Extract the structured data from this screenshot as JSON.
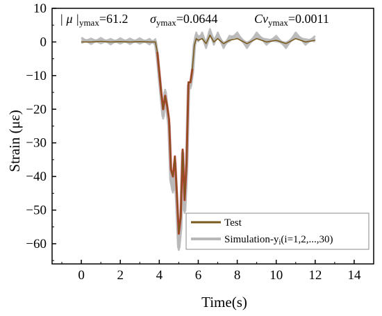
{
  "chart_data": {
    "type": "line",
    "xlabel": "Time(s)",
    "ylabel": "Strain (με)",
    "xlim": [
      -1.5,
      15.0
    ],
    "ylim": [
      -66,
      10
    ],
    "x_ticks": [
      0,
      2,
      4,
      6,
      8,
      10,
      12,
      14
    ],
    "y_ticks": [
      10,
      0,
      -10,
      -20,
      -30,
      -40,
      -50,
      -60
    ],
    "x_tick_labels": [
      "0",
      "2",
      "4",
      "6",
      "8",
      "10",
      "12",
      "14"
    ],
    "y_tick_labels": [
      "10",
      "0",
      "−10",
      "−20",
      "−30",
      "−40",
      "−50",
      "−60"
    ],
    "annotation": {
      "mu_label": "| μ |",
      "mu_sub": "ymax",
      "mu_value": "=61.2",
      "sigma_label": "σ",
      "sigma_sub": "ymax",
      "sigma_value": "=0.0644",
      "cv_label": "Cv",
      "cv_sub": "ymax",
      "cv_value": "=0.0011"
    },
    "legend_placement": "bottom-right",
    "grid": false,
    "series": [
      {
        "name": "Simulation-y",
        "name_sub": "i",
        "name_suffix": "(i=1,2,...,30)",
        "color": "#b8b8b8",
        "x": [
          0,
          0.5,
          1.0,
          1.5,
          2.0,
          2.5,
          3.0,
          3.5,
          3.8,
          3.9,
          4.0,
          4.1,
          4.2,
          4.3,
          4.4,
          4.5,
          4.6,
          4.7,
          4.8,
          4.9,
          5.0,
          5.1,
          5.2,
          5.3,
          5.4,
          5.5,
          5.6,
          5.7,
          5.8,
          5.9,
          6.0,
          6.2,
          6.4,
          6.6,
          6.8,
          7.0,
          7.3,
          7.6,
          8.0,
          8.5,
          9.0,
          9.5,
          10.0,
          10.5,
          11.0,
          11.5,
          12.0
        ],
        "y": [
          0.5,
          0.2,
          0.4,
          0.1,
          0.3,
          0.2,
          0.3,
          0.1,
          0,
          -4,
          -10,
          -16,
          -22,
          -15,
          -20,
          -25,
          -41,
          -44,
          -36,
          -48,
          -61,
          -55,
          -33,
          -50,
          -38,
          -13,
          -13,
          -9,
          -1,
          2,
          1,
          2,
          -1,
          3,
          0,
          2,
          -1,
          1,
          2,
          -1,
          2,
          0,
          1,
          -1,
          2,
          0,
          1
        ]
      },
      {
        "name": "Test",
        "color": "#7a5a1c",
        "x": [
          0,
          0.5,
          1.0,
          1.5,
          2.0,
          2.5,
          3.0,
          3.5,
          3.8,
          3.9,
          4.0,
          4.1,
          4.2,
          4.3,
          4.4,
          4.5,
          4.6,
          4.7,
          4.8,
          4.9,
          5.0,
          5.1,
          5.2,
          5.3,
          5.4,
          5.5,
          5.6,
          5.7,
          5.8,
          5.9,
          6.0,
          6.2,
          6.4,
          6.6,
          6.8,
          7.0,
          7.3,
          7.6,
          8.0,
          8.5,
          9.0,
          9.5,
          10.0,
          10.5,
          11.0,
          11.5,
          12.0
        ],
        "y": [
          0,
          0,
          0.2,
          0,
          0.1,
          0,
          0.1,
          0,
          0,
          -3,
          -9,
          -15,
          -20,
          -16,
          -19,
          -23,
          -38,
          -40,
          -34,
          -45,
          -57,
          -52,
          -32,
          -47,
          -36,
          -12,
          -12,
          -8,
          -1,
          1,
          0.5,
          1,
          -0.5,
          2,
          0,
          1,
          -0.5,
          0.5,
          1,
          -0.5,
          1,
          0,
          0.5,
          -0.5,
          1,
          0,
          0.5
        ]
      }
    ],
    "highlight_color": "#cc1a1a"
  }
}
